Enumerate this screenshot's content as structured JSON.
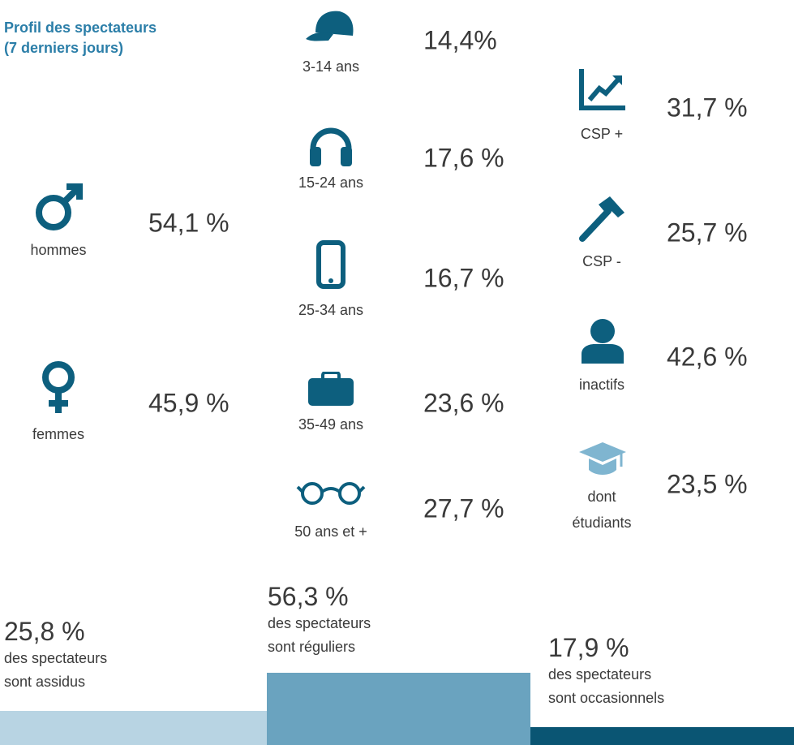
{
  "header": {
    "title_line1": "Profil des spectateurs",
    "title_line2": "(7 derniers jours)"
  },
  "gender": [
    {
      "label": "hommes",
      "value": "54,1 %"
    },
    {
      "label": "femmes",
      "value": "45,9 %"
    }
  ],
  "ages": [
    {
      "label": "3-14 ans",
      "value": "14,4%"
    },
    {
      "label": "15-24 ans",
      "value": "17,6 %"
    },
    {
      "label": "25-34 ans",
      "value": "16,7 %"
    },
    {
      "label": "35-49 ans",
      "value": "23,6 %"
    },
    {
      "label": "50 ans et +",
      "value": "27,7 %"
    }
  ],
  "csp": [
    {
      "label": "CSP +",
      "value": "31,7 %"
    },
    {
      "label": "CSP -",
      "value": "25,7 %"
    },
    {
      "label": "inactifs",
      "value": "42,6 %"
    },
    {
      "label_line1": "dont",
      "label_line2": "étudiants",
      "value": "23,5 %"
    }
  ],
  "frequency": [
    {
      "value": "25,8 %",
      "line1": "des spectateurs",
      "line2": "sont assidus"
    },
    {
      "value": "56,3 %",
      "line1": "des spectateurs",
      "line2": "sont réguliers"
    },
    {
      "value": "17,9 %",
      "line1": "des spectateurs",
      "line2": "sont occasionnels"
    }
  ]
}
